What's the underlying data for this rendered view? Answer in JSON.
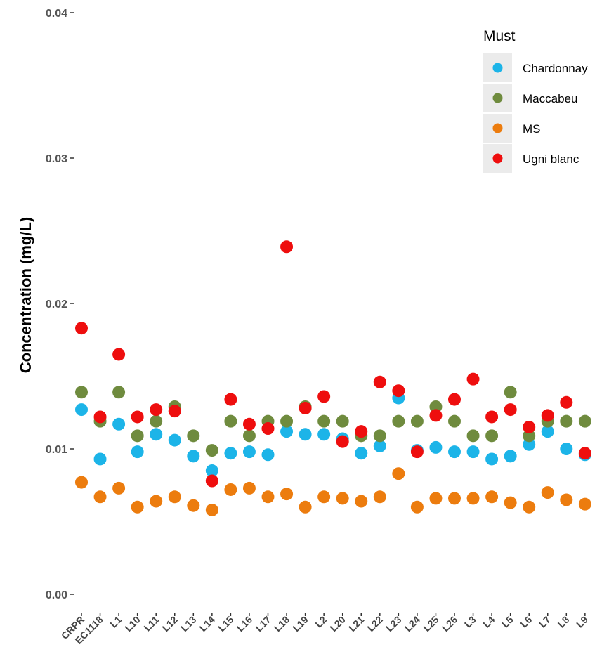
{
  "chart_data": {
    "type": "scatter",
    "ylabel": "Concentration (mg/L)",
    "xlabel": "",
    "ylim": [
      0,
      0.04
    ],
    "yticks": [
      "0.00",
      "0.01",
      "0.02",
      "0.03",
      "0.04"
    ],
    "ytick_values": [
      0,
      0.01,
      0.02,
      0.03,
      0.04
    ],
    "grid": false,
    "legend": {
      "title": "Must",
      "position": "top-right"
    },
    "categories": [
      "CRPR",
      "EC1118",
      "L1",
      "L10",
      "L11",
      "L12",
      "L13",
      "L14",
      "L15",
      "L16",
      "L17",
      "L18",
      "L19",
      "L2",
      "L20",
      "L21",
      "L22",
      "L23",
      "L24",
      "L25",
      "L26",
      "L3",
      "L4",
      "L5",
      "L6",
      "L7",
      "L8",
      "L9"
    ],
    "series": [
      {
        "name": "Chardonnay",
        "color": "#1cb4e8",
        "values": [
          0.0127,
          0.0093,
          0.0117,
          0.0098,
          0.011,
          0.0106,
          0.0095,
          0.0085,
          0.0097,
          0.0098,
          0.0096,
          0.0112,
          0.011,
          0.011,
          0.0107,
          0.0097,
          0.0102,
          0.0135,
          0.0099,
          0.0101,
          0.0098,
          0.0098,
          0.0093,
          0.0095,
          0.0103,
          0.0112,
          0.01,
          0.0096
        ]
      },
      {
        "name": "Maccabeu",
        "color": "#6f8b3e",
        "values": [
          0.0139,
          0.0119,
          0.0139,
          0.0109,
          0.0119,
          0.0129,
          0.0109,
          0.0099,
          0.0119,
          0.0109,
          0.0119,
          0.0119,
          0.0129,
          0.0119,
          0.0119,
          0.0109,
          0.0109,
          0.0119,
          0.0119,
          0.0129,
          0.0119,
          0.0109,
          0.0109,
          0.0139,
          0.0109,
          0.0119,
          0.0119,
          0.0119
        ]
      },
      {
        "name": "MS",
        "color": "#ec7c0e",
        "values": [
          0.0077,
          0.0067,
          0.0073,
          0.006,
          0.0064,
          0.0067,
          0.0061,
          0.0058,
          0.0072,
          0.0073,
          0.0067,
          0.0069,
          0.006,
          0.0067,
          0.0066,
          0.0064,
          0.0067,
          0.0083,
          0.006,
          0.0066,
          0.0066,
          0.0066,
          0.0067,
          0.0063,
          0.006,
          0.007,
          0.0065,
          0.0062
        ]
      },
      {
        "name": "Ugni blanc",
        "color": "#ee0e0e",
        "values": [
          0.0183,
          0.0122,
          0.0165,
          0.0122,
          0.0127,
          0.0126,
          null,
          0.0078,
          0.0134,
          0.0117,
          0.0114,
          0.0239,
          0.0128,
          0.0136,
          0.0105,
          0.0112,
          0.0146,
          0.014,
          0.0098,
          0.0123,
          0.0134,
          0.0148,
          0.0122,
          0.0127,
          0.0115,
          0.0123,
          0.0132,
          0.0097
        ]
      }
    ]
  }
}
